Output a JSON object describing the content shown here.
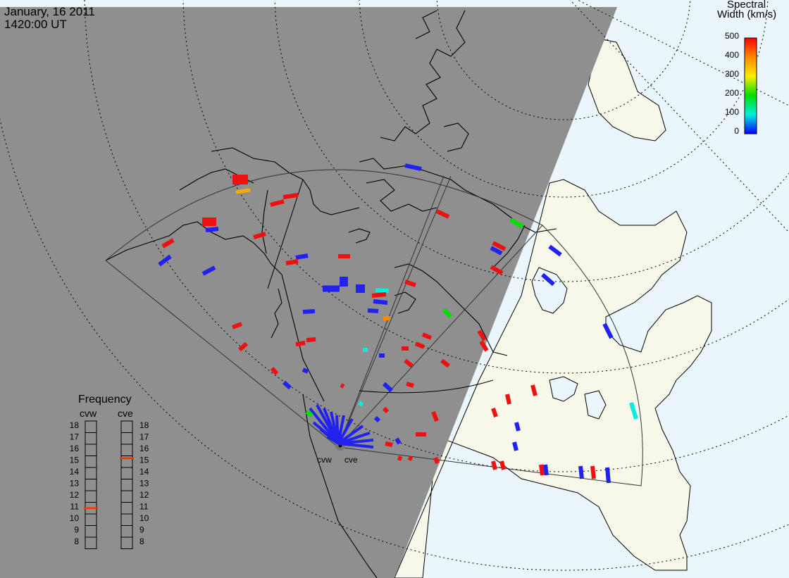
{
  "header": {
    "date": "January, 16 2011",
    "time": "1420:00 UT"
  },
  "colorbar": {
    "title_line1": "Spectral",
    "title_line2": "Width (km/s)",
    "ticks": [
      "500",
      "400",
      "300",
      "200",
      "100",
      "0"
    ],
    "colors": [
      "#ff0000",
      "#ff8800",
      "#ffee00",
      "#00dd00",
      "#00eedd",
      "#0000ff"
    ]
  },
  "frequency_panel": {
    "title": "Frequency",
    "left_label": "cvw",
    "right_label": "cve",
    "scale": [
      "18",
      "17",
      "16",
      "15",
      "14",
      "13",
      "12",
      "11",
      "10",
      "9",
      "8"
    ],
    "cvw_value": 10.8,
    "cve_value": 15.1,
    "marker_color": "#ff3300"
  },
  "radars": {
    "west_label": "cvw",
    "east_label": "cve"
  },
  "colors": {
    "night": "#8f8f8f",
    "day_land": "#f8f8ea",
    "day_ocean": "#eaf5fc",
    "scatter_low": "#2222ee",
    "scatter_high": "#ee1111"
  }
}
